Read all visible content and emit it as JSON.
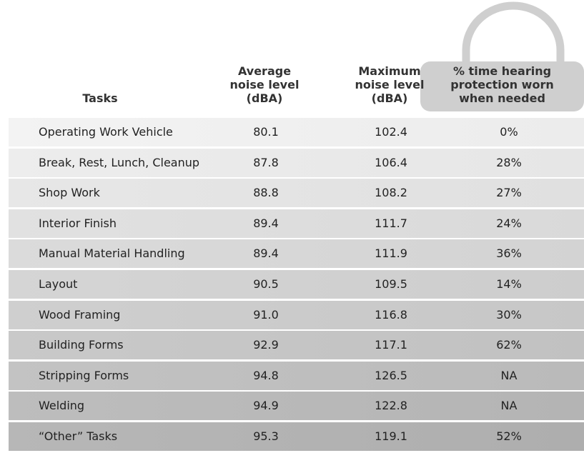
{
  "table": {
    "columns": [
      [
        "Tasks"
      ],
      [
        "Average",
        "noise level",
        "(dBA)"
      ],
      [
        "Maximum",
        "noise level",
        "(dBA)"
      ],
      [
        "% time hearing",
        "protection worn",
        "when needed"
      ]
    ],
    "rows": [
      [
        "Operating Work Vehicle",
        "80.1",
        "102.4",
        "0%"
      ],
      [
        "Break, Rest, Lunch, Cleanup",
        "87.8",
        "106.4",
        "28%"
      ],
      [
        "Shop Work",
        "88.8",
        "108.2",
        "27%"
      ],
      [
        "Interior Finish",
        "89.4",
        "111.7",
        "24%"
      ],
      [
        "Manual Material Handling",
        "89.4",
        "111.9",
        "36%"
      ],
      [
        "Layout",
        "90.5",
        "109.5",
        "14%"
      ],
      [
        "Wood Framing",
        "91.0",
        "116.8",
        "30%"
      ],
      [
        "Building Forms",
        "92.9",
        "117.1",
        "62%"
      ],
      [
        "Stripping Forms",
        "94.8",
        "126.5",
        "NA"
      ],
      [
        "Welding",
        "94.9",
        "122.8",
        "NA"
      ],
      [
        "“Other” Tasks",
        "95.3",
        "119.1",
        "52%"
      ]
    ]
  }
}
